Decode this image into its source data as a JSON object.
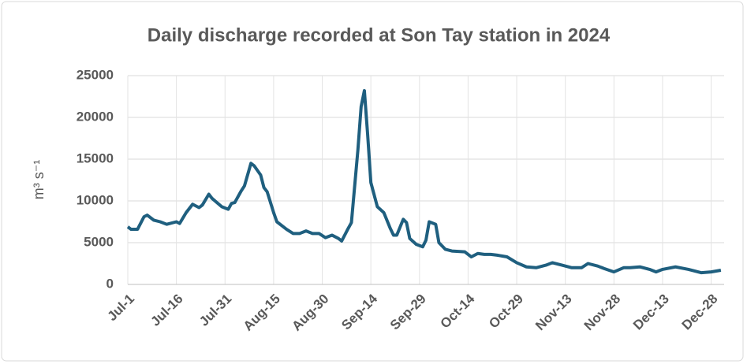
{
  "chart_data": {
    "type": "line",
    "title": "Daily discharge recorded at Son Tay station in 2024",
    "y_label": "m³ s⁻¹",
    "x": [
      0,
      1,
      3,
      5,
      6,
      8,
      10,
      12,
      15,
      16,
      18,
      20,
      22,
      23,
      25,
      26,
      29,
      31,
      32,
      33,
      35,
      36,
      38,
      39,
      41,
      42,
      43,
      45,
      46,
      49,
      51,
      53,
      55,
      57,
      59,
      61,
      63,
      65,
      66,
      68,
      69,
      71,
      72,
      73,
      74,
      75,
      77,
      79,
      81,
      82,
      83,
      85,
      86,
      87,
      89,
      91,
      92,
      93,
      95,
      96,
      98,
      100,
      104,
      106,
      108,
      110,
      112,
      114,
      117,
      120,
      123,
      126,
      129,
      131,
      134,
      137,
      140,
      142,
      145,
      147,
      150,
      153,
      155,
      158,
      161,
      163,
      165,
      169,
      173,
      175,
      177,
      180,
      183
    ],
    "series": [
      {
        "name": "Discharge",
        "color": "#1f5f7f",
        "values": [
          6900,
          6600,
          6600,
          8100,
          8300,
          7700,
          7500,
          7200,
          7500,
          7300,
          8600,
          9600,
          9200,
          9500,
          10800,
          10300,
          9300,
          9000,
          9700,
          9800,
          11200,
          11800,
          14500,
          14200,
          13100,
          11600,
          11100,
          8600,
          7500,
          6600,
          6100,
          6100,
          6400,
          6100,
          6100,
          5600,
          5900,
          5500,
          5200,
          6700,
          7400,
          16100,
          21300,
          23200,
          18000,
          12200,
          9300,
          8600,
          6700,
          5900,
          5900,
          7800,
          7400,
          5500,
          4800,
          4500,
          5300,
          7500,
          7200,
          5000,
          4200,
          4000,
          3900,
          3300,
          3700,
          3600,
          3600,
          3500,
          3300,
          2600,
          2100,
          2000,
          2300,
          2600,
          2300,
          2000,
          2000,
          2500,
          2200,
          1900,
          1500,
          2000,
          2000,
          2100,
          1800,
          1500,
          1800,
          2100,
          1800,
          1600,
          1400,
          1500,
          1700
        ]
      }
    ],
    "xlim": [
      0,
      184
    ],
    "xticks": [
      {
        "value": 0,
        "label": "Jul-1"
      },
      {
        "value": 15,
        "label": "Jul-16"
      },
      {
        "value": 30,
        "label": "Jul-31"
      },
      {
        "value": 45,
        "label": "Aug-15"
      },
      {
        "value": 60,
        "label": "Aug-30"
      },
      {
        "value": 75,
        "label": "Sep-14"
      },
      {
        "value": 90,
        "label": "Sep-29"
      },
      {
        "value": 105,
        "label": "Oct-14"
      },
      {
        "value": 120,
        "label": "Oct-29"
      },
      {
        "value": 135,
        "label": "Nov-13"
      },
      {
        "value": 150,
        "label": "Nov-28"
      },
      {
        "value": 165,
        "label": "Dec-13"
      },
      {
        "value": 180,
        "label": "Dec-28"
      }
    ],
    "ylim": [
      0,
      25000
    ],
    "yticks": [
      0,
      5000,
      10000,
      15000,
      20000,
      25000
    ],
    "grid": true
  }
}
